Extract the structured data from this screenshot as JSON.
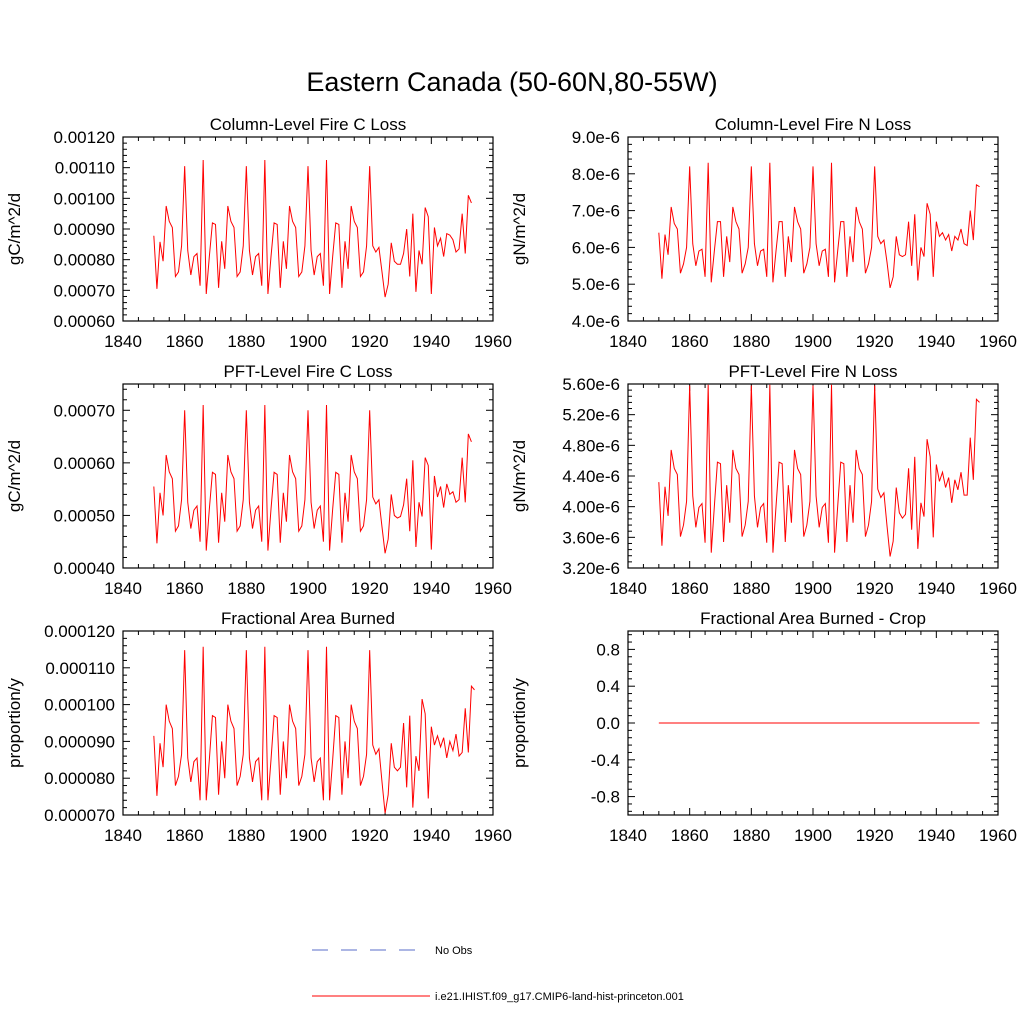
{
  "page": {
    "title": "Eastern Canada (50-60N,80-55W)"
  },
  "colors": {
    "series": "#ff0000",
    "obs": "#5a6cc8",
    "axis": "#000000"
  },
  "legend": {
    "entries": [
      {
        "label": "No Obs",
        "style": "dashed",
        "color": "#5a6cc8"
      },
      {
        "label": "i.e21.IHIST.f09_g17.CMIP6-land-hist-princeton.001",
        "style": "solid",
        "color": "#ff0000"
      }
    ]
  },
  "chart_data": [
    {
      "type": "line",
      "title": "Column-Level Fire C Loss",
      "ylabel": "gC/m^2/d",
      "xlim": [
        1840,
        1960
      ],
      "ylim": [
        0.0006,
        0.0012
      ],
      "xticks": [
        1840,
        1860,
        1880,
        1900,
        1920,
        1940,
        1960
      ],
      "xtick_labels": [
        "1840",
        "1860",
        "1880",
        "1900",
        "1920",
        "1940",
        "1960"
      ],
      "yticks": [
        0.0006,
        0.0007,
        0.0008,
        0.0009,
        0.001,
        0.0011,
        0.0012
      ],
      "ytick_labels": [
        "0.00060",
        "0.00070",
        "0.00080",
        "0.00090",
        "0.00100",
        "0.00110",
        "0.00120"
      ],
      "series": [
        {
          "x_start": 1850,
          "x_step": 1,
          "values": [
            0.000878,
            0.000705,
            0.000858,
            0.000795,
            0.000975,
            0.000925,
            0.000905,
            0.000745,
            0.00076,
            0.000845,
            0.001105,
            0.00083,
            0.00075,
            0.00081,
            0.00082,
            0.000715,
            0.001125,
            0.000688,
            0.00081,
            0.00092,
            0.000915,
            0.000708,
            0.00086,
            0.00077,
            0.000975,
            0.000925,
            0.000905,
            0.000745,
            0.00076,
            0.000845,
            0.001105,
            0.00083,
            0.00075,
            0.00081,
            0.00082,
            0.000715,
            0.001125,
            0.000688,
            0.00081,
            0.00092,
            0.000915,
            0.000708,
            0.00086,
            0.00077,
            0.000975,
            0.000925,
            0.000905,
            0.000745,
            0.00076,
            0.000845,
            0.001105,
            0.00083,
            0.00075,
            0.00081,
            0.00082,
            0.000715,
            0.001125,
            0.000688,
            0.00081,
            0.00092,
            0.000915,
            0.000708,
            0.00086,
            0.00077,
            0.000975,
            0.000925,
            0.000905,
            0.000745,
            0.00076,
            0.000845,
            0.001105,
            0.000845,
            0.000825,
            0.00084,
            0.00076,
            0.000678,
            0.00072,
            0.000855,
            0.000795,
            0.000785,
            0.000785,
            0.00082,
            0.0009,
            0.000745,
            0.00095,
            0.000695,
            0.00083,
            0.000785,
            0.00097,
            0.00094,
            0.000688,
            0.000905,
            0.000845,
            0.00087,
            0.00081,
            0.000885,
            0.00088,
            0.000865,
            0.000825,
            0.000835,
            0.00095,
            0.00082,
            0.00101,
            0.000985
          ]
        }
      ]
    },
    {
      "type": "line",
      "title": "Column-Level Fire N Loss",
      "ylabel": "gN/m^2/d",
      "xlim": [
        1840,
        1960
      ],
      "ylim": [
        4e-06,
        9e-06
      ],
      "xticks": [
        1840,
        1860,
        1880,
        1900,
        1920,
        1940,
        1960
      ],
      "xtick_labels": [
        "1840",
        "1860",
        "1880",
        "1900",
        "1920",
        "1940",
        "1960"
      ],
      "yticks": [
        4e-06,
        5e-06,
        6e-06,
        7e-06,
        8e-06,
        9e-06
      ],
      "ytick_labels": [
        "4.0e-6",
        "5.0e-6",
        "6.0e-6",
        "7.0e-6",
        "8.0e-6",
        "9.0e-6"
      ],
      "series": [
        {
          "x_start": 1850,
          "x_step": 1,
          "values": [
            6.4e-06,
            5.15e-06,
            6.35e-06,
            5.8e-06,
            7.1e-06,
            6.65e-06,
            6.5e-06,
            5.3e-06,
            5.55e-06,
            6e-06,
            8.2e-06,
            6.1e-06,
            5.5e-06,
            5.9e-06,
            5.95e-06,
            5.2e-06,
            8.3e-06,
            5.05e-06,
            5.9e-06,
            6.7e-06,
            6.7e-06,
            5.2e-06,
            6.3e-06,
            5.6e-06,
            7.1e-06,
            6.7e-06,
            6.5e-06,
            5.3e-06,
            5.55e-06,
            6e-06,
            8.2e-06,
            6.1e-06,
            5.5e-06,
            5.9e-06,
            5.95e-06,
            5.2e-06,
            8.3e-06,
            5.05e-06,
            5.9e-06,
            6.7e-06,
            6.7e-06,
            5.2e-06,
            6.3e-06,
            5.6e-06,
            7.1e-06,
            6.7e-06,
            6.5e-06,
            5.3e-06,
            5.55e-06,
            6e-06,
            8.2e-06,
            6.1e-06,
            5.5e-06,
            5.9e-06,
            5.95e-06,
            5.2e-06,
            8.3e-06,
            5.05e-06,
            5.9e-06,
            6.7e-06,
            6.7e-06,
            5.2e-06,
            6.3e-06,
            5.6e-06,
            7.1e-06,
            6.7e-06,
            6.5e-06,
            5.3e-06,
            5.55e-06,
            6e-06,
            8.2e-06,
            6.3e-06,
            6.1e-06,
            6.2e-06,
            5.6e-06,
            4.9e-06,
            5.2e-06,
            6.3e-06,
            5.8e-06,
            5.75e-06,
            5.8e-06,
            6.7e-06,
            5.5e-06,
            6.9e-06,
            5.1e-06,
            6e-06,
            5.75e-06,
            7.2e-06,
            6.9e-06,
            5.2e-06,
            6.7e-06,
            6.3e-06,
            6.4e-06,
            6.2e-06,
            6.35e-06,
            5.9e-06,
            6.3e-06,
            6.2e-06,
            6.5e-06,
            6.1e-06,
            6.05e-06,
            7e-06,
            6.2e-06,
            7.7e-06,
            7.65e-06
          ]
        }
      ]
    },
    {
      "type": "line",
      "title": "PFT-Level Fire C Loss",
      "ylabel": "gC/m^2/d",
      "xlim": [
        1840,
        1960
      ],
      "ylim": [
        0.0004,
        0.00075
      ],
      "xticks": [
        1840,
        1860,
        1880,
        1900,
        1920,
        1940,
        1960
      ],
      "xtick_labels": [
        "1840",
        "1860",
        "1880",
        "1900",
        "1920",
        "1940",
        "1960"
      ],
      "yticks": [
        0.0004,
        0.0005,
        0.0006,
        0.0007
      ],
      "ytick_labels": [
        "0.00040",
        "0.00050",
        "0.00060",
        "0.00070"
      ],
      "series": [
        {
          "x_start": 1850,
          "x_step": 1,
          "values": [
            0.000555,
            0.000447,
            0.000543,
            0.0005,
            0.000615,
            0.000583,
            0.00057,
            0.00047,
            0.00048,
            0.00053,
            0.0007,
            0.000525,
            0.000475,
            0.00051,
            0.000518,
            0.00045,
            0.00071,
            0.000433,
            0.000512,
            0.000582,
            0.000578,
            0.000448,
            0.000543,
            0.000488,
            0.000615,
            0.000583,
            0.00057,
            0.00047,
            0.00048,
            0.00053,
            0.0007,
            0.000525,
            0.000475,
            0.00051,
            0.000518,
            0.00045,
            0.00071,
            0.000433,
            0.000512,
            0.000582,
            0.000578,
            0.000448,
            0.000543,
            0.000488,
            0.000615,
            0.000583,
            0.00057,
            0.00047,
            0.00048,
            0.00053,
            0.0007,
            0.000525,
            0.000475,
            0.00051,
            0.000518,
            0.00045,
            0.00071,
            0.000433,
            0.000512,
            0.000582,
            0.000578,
            0.000448,
            0.000543,
            0.000488,
            0.000615,
            0.000583,
            0.00057,
            0.00047,
            0.00048,
            0.00053,
            0.0007,
            0.000535,
            0.000522,
            0.00053,
            0.000478,
            0.000428,
            0.000455,
            0.00054,
            0.0005,
            0.000495,
            0.000498,
            0.00052,
            0.00057,
            0.00047,
            0.000605,
            0.00044,
            0.000525,
            0.000498,
            0.00061,
            0.000595,
            0.000435,
            0.000575,
            0.000535,
            0.000555,
            0.000515,
            0.00056,
            0.00054,
            0.000545,
            0.000525,
            0.00053,
            0.00061,
            0.000525,
            0.000655,
            0.00064
          ]
        }
      ]
    },
    {
      "type": "line",
      "title": "PFT-Level Fire N Loss",
      "ylabel": "gN/m^2/d",
      "xlim": [
        1840,
        1960
      ],
      "ylim": [
        3.2e-06,
        5.6e-06
      ],
      "xticks": [
        1840,
        1860,
        1880,
        1900,
        1920,
        1940,
        1960
      ],
      "xtick_labels": [
        "1840",
        "1860",
        "1880",
        "1900",
        "1920",
        "1940",
        "1960"
      ],
      "yticks": [
        3.2e-06,
        3.6e-06,
        4e-06,
        4.4e-06,
        4.8e-06,
        5.2e-06,
        5.6e-06
      ],
      "ytick_labels": [
        "3.20e-6",
        "3.60e-6",
        "4.00e-6",
        "4.40e-6",
        "4.80e-6",
        "5.20e-6",
        "5.60e-6"
      ],
      "series": [
        {
          "x_start": 1850,
          "x_step": 1,
          "values": [
            4.32e-06,
            3.49e-06,
            4.26e-06,
            3.88e-06,
            4.74e-06,
            4.5e-06,
            4.42e-06,
            3.61e-06,
            3.76e-06,
            4.07e-06,
            5.58e-06,
            4.14e-06,
            3.73e-06,
            3.99e-06,
            4.04e-06,
            3.53e-06,
            5.59e-06,
            3.4e-06,
            4e-06,
            4.58e-06,
            4.56e-06,
            3.54e-06,
            4.28e-06,
            3.79e-06,
            4.74e-06,
            4.5e-06,
            4.42e-06,
            3.61e-06,
            3.76e-06,
            4.07e-06,
            5.58e-06,
            4.14e-06,
            3.73e-06,
            3.99e-06,
            4.04e-06,
            3.53e-06,
            5.59e-06,
            3.4e-06,
            4e-06,
            4.58e-06,
            4.56e-06,
            3.54e-06,
            4.28e-06,
            3.79e-06,
            4.74e-06,
            4.5e-06,
            4.42e-06,
            3.61e-06,
            3.76e-06,
            4.07e-06,
            5.58e-06,
            4.14e-06,
            3.73e-06,
            3.99e-06,
            4.04e-06,
            3.53e-06,
            5.59e-06,
            3.4e-06,
            4e-06,
            4.58e-06,
            4.56e-06,
            3.54e-06,
            4.28e-06,
            3.79e-06,
            4.74e-06,
            4.5e-06,
            4.42e-06,
            3.61e-06,
            3.76e-06,
            4.07e-06,
            5.58e-06,
            4.23e-06,
            4.12e-06,
            4.18e-06,
            3.75e-06,
            3.35e-06,
            3.55e-06,
            4.25e-06,
            3.92e-06,
            3.85e-06,
            3.9e-06,
            4.5e-06,
            3.7e-06,
            4.65e-06,
            3.45e-06,
            4.05e-06,
            3.87e-06,
            4.88e-06,
            4.65e-06,
            3.6e-06,
            4.55e-06,
            4.33e-06,
            4.45e-06,
            4.25e-06,
            4.38e-06,
            4.05e-06,
            4.35e-06,
            4.22e-06,
            4.45e-06,
            4.15e-06,
            4.15e-06,
            4.9e-06,
            4.35e-06,
            5.4e-06,
            5.36e-06
          ]
        }
      ]
    },
    {
      "type": "line",
      "title": "Fractional Area Burned",
      "ylabel": "proportion/y",
      "xlim": [
        1840,
        1960
      ],
      "ylim": [
        7e-05,
        0.00012
      ],
      "xticks": [
        1840,
        1860,
        1880,
        1900,
        1920,
        1940,
        1960
      ],
      "xtick_labels": [
        "1840",
        "1860",
        "1880",
        "1900",
        "1920",
        "1940",
        "1960"
      ],
      "yticks": [
        7e-05,
        8e-05,
        9e-05,
        0.0001,
        0.00011,
        0.00012
      ],
      "ytick_labels": [
        "0.000070",
        "0.000080",
        "0.000090",
        "0.000100",
        "0.000110",
        "0.000120"
      ],
      "series": [
        {
          "x_start": 1850,
          "x_step": 1,
          "values": [
            9.15e-05,
            7.52e-05,
            8.95e-05,
            8.3e-05,
            0.0001,
            9.55e-05,
            9.35e-05,
            7.8e-05,
            8.05e-05,
            8.65e-05,
            0.0001148,
            8.55e-05,
            7.9e-05,
            8.45e-05,
            8.55e-05,
            7.4e-05,
            0.0001157,
            7.4e-05,
            8.5e-05,
            9.7e-05,
            9.65e-05,
            7.55e-05,
            9e-05,
            8e-05,
            0.0001,
            9.55e-05,
            9.35e-05,
            7.8e-05,
            8.05e-05,
            8.65e-05,
            0.0001148,
            8.55e-05,
            7.9e-05,
            8.45e-05,
            8.55e-05,
            7.4e-05,
            0.0001157,
            7.4e-05,
            8.5e-05,
            9.7e-05,
            9.65e-05,
            7.55e-05,
            9e-05,
            8e-05,
            0.0001,
            9.55e-05,
            9.35e-05,
            7.8e-05,
            8.05e-05,
            8.65e-05,
            0.0001148,
            8.55e-05,
            7.9e-05,
            8.45e-05,
            8.55e-05,
            7.4e-05,
            0.0001157,
            7.4e-05,
            8.5e-05,
            9.7e-05,
            9.65e-05,
            7.55e-05,
            9e-05,
            8e-05,
            0.0001,
            9.55e-05,
            9.35e-05,
            7.8e-05,
            8.05e-05,
            8.65e-05,
            0.0001148,
            8.9e-05,
            8.65e-05,
            8.8e-05,
            7.9e-05,
            7.05e-05,
            7.55e-05,
            8.95e-05,
            8.3e-05,
            8.2e-05,
            8.3e-05,
            9.5e-05,
            7.75e-05,
            9.7e-05,
            7.2e-05,
            8.6e-05,
            8.2e-05,
            0.0001015,
            9.75e-05,
            7.45e-05,
            9.4e-05,
            8.9e-05,
            9.15e-05,
            8.85e-05,
            9.1e-05,
            8.55e-05,
            9e-05,
            8.75e-05,
            9.2e-05,
            8.6e-05,
            8.7e-05,
            9.9e-05,
            8.7e-05,
            0.000105,
            0.000104
          ]
        }
      ]
    },
    {
      "type": "line",
      "title": "Fractional Area Burned - Crop",
      "ylabel": "proportion/y",
      "xlim": [
        1840,
        1960
      ],
      "ylim": [
        -1.0,
        1.0
      ],
      "xticks": [
        1840,
        1860,
        1880,
        1900,
        1920,
        1940,
        1960
      ],
      "xtick_labels": [
        "1840",
        "1860",
        "1880",
        "1900",
        "1920",
        "1940",
        "1960"
      ],
      "yticks": [
        -0.8,
        -0.4,
        0.0,
        0.4,
        0.8
      ],
      "ytick_labels": [
        "-0.8",
        "-0.4",
        "0.0",
        "0.4",
        "0.8"
      ],
      "series": [
        {
          "x_start": 1850,
          "x_step": 104,
          "values": [
            0.0,
            0.0
          ]
        }
      ]
    }
  ]
}
